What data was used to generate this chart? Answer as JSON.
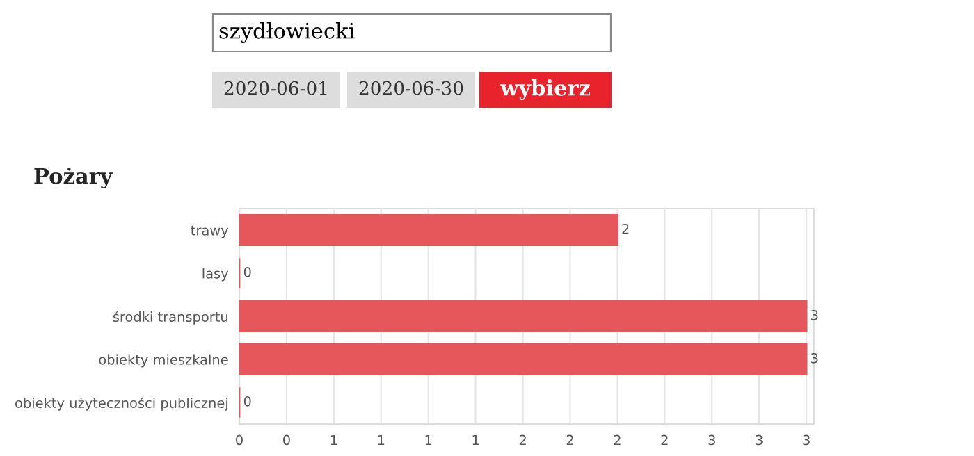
{
  "chart_data": {
    "type": "bar",
    "orientation": "horizontal",
    "title": "Pożary",
    "annotations": [
      "szydłowiecki",
      "2020-06-01",
      "2020-06-30",
      "wybierz"
    ],
    "categories": [
      "trawy",
      "lasy",
      "środki transportu",
      "obiekty mieszkalne",
      "obiekty użyteczności publicznej"
    ],
    "values": [
      2,
      0,
      3,
      3,
      0
    ],
    "color": "#e5575b",
    "data_labels": true,
    "grid": "x",
    "xlim": [
      0,
      3.04
    ],
    "xticks": [
      {
        "value": 0,
        "label": "0"
      },
      {
        "value": 0.25,
        "label": "0"
      },
      {
        "value": 0.5,
        "label": "1"
      },
      {
        "value": 0.75,
        "label": "1"
      },
      {
        "value": 1,
        "label": "1"
      },
      {
        "value": 1.25,
        "label": "1"
      },
      {
        "value": 1.5,
        "label": "2"
      },
      {
        "value": 1.75,
        "label": "2"
      },
      {
        "value": 2,
        "label": "2"
      },
      {
        "value": 2.25,
        "label": "2"
      },
      {
        "value": 2.5,
        "label": "3"
      },
      {
        "value": 2.75,
        "label": "3"
      },
      {
        "value": 3,
        "label": "3"
      }
    ]
  }
}
